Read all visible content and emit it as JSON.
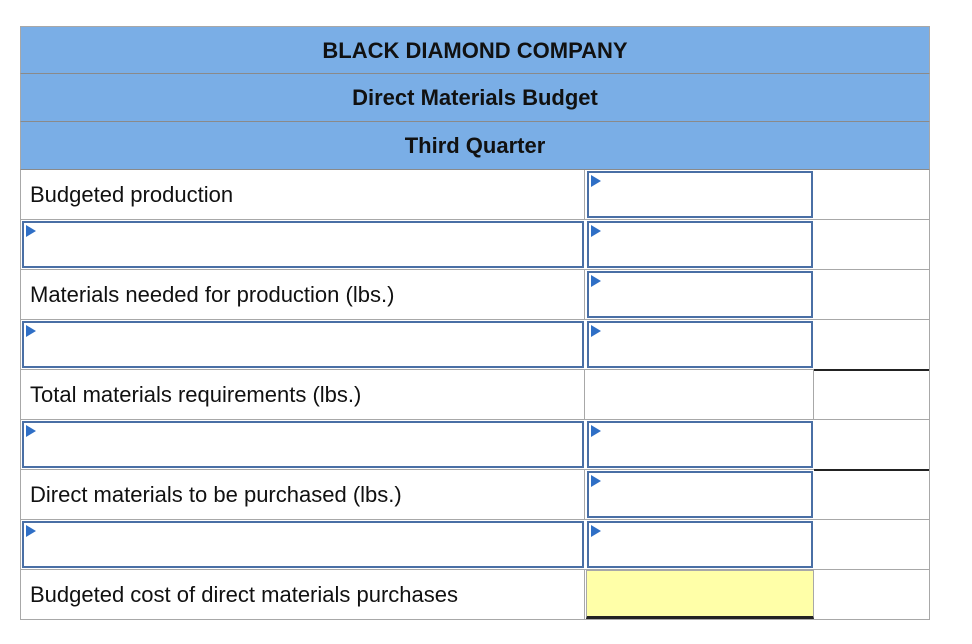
{
  "header": {
    "company": "BLACK DIAMOND  COMPANY",
    "title": "Direct Materials Budget",
    "period": "Third Quarter"
  },
  "rows": [
    {
      "label": "Budgeted production",
      "label_input": false,
      "amount": ""
    },
    {
      "label": "",
      "label_input": true,
      "amount": ""
    },
    {
      "label": "Materials needed for production (lbs.)",
      "label_input": false,
      "amount": ""
    },
    {
      "label": "",
      "label_input": true,
      "amount": ""
    },
    {
      "label": "Total materials requirements (lbs.)",
      "label_input": false,
      "amount": ""
    },
    {
      "label": "",
      "label_input": true,
      "amount": ""
    },
    {
      "label": "Direct materials to be purchased (lbs.)",
      "label_input": false,
      "amount": ""
    },
    {
      "label": "",
      "label_input": true,
      "amount": ""
    },
    {
      "label": "Budgeted cost of direct materials purchases",
      "label_input": false,
      "amount": ""
    }
  ],
  "colors": {
    "header_bg": "#7aaee6",
    "input_border": "#4a6fa5",
    "marker": "#2f6fc6",
    "total_highlight": "#ffffa8"
  }
}
